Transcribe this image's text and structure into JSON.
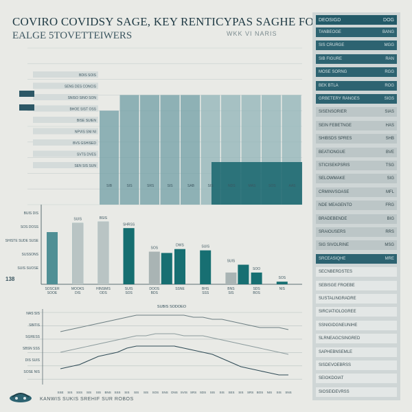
{
  "header": {
    "title_line1": "COVIRO COVIDSY SAGE, KEY RENTICYPAS SAGHE FOD.",
    "title_line2": "EALGE 5TOVETTEIWERS",
    "subtitle_right": "WKK VI NARIS"
  },
  "side_number": "138",
  "footer_text": "KANWIS SUKIS SREHIF SUR ROBOS",
  "colors": {
    "teal_dark": "#176f72",
    "teal_mid": "#4f8f95",
    "grey": "#a9b4b4",
    "navy": "#235a68",
    "line": "#2e4a55"
  },
  "right_panel": {
    "header_left": "DEOSIGD",
    "header_right": "DOG",
    "rows": [
      {
        "label": "TANBEOGE",
        "value": "BANG",
        "style": "dark"
      },
      {
        "label": "SIS CRURGE",
        "value": "MGG",
        "style": "dark"
      },
      {
        "label": "SIB FIGURE",
        "value": "RAN",
        "style": "dark"
      },
      {
        "label": "MOSE SORNG",
        "value": "RGG",
        "style": "dark"
      },
      {
        "label": "BEK BTLA",
        "value": "ROG",
        "style": "dark"
      },
      {
        "label": "GRBETERY RANGES",
        "value": "SIGS",
        "style": "dark"
      },
      {
        "label": "SISENSORIER",
        "value": "SIAS",
        "style": "light"
      },
      {
        "label": "SEIN FEBETNGE",
        "value": "HAS",
        "style": "light"
      },
      {
        "label": "SHIBSDS SPRES",
        "value": "SHB",
        "style": "light"
      },
      {
        "label": "BEATIONGUE",
        "value": "BVE",
        "style": "light"
      },
      {
        "label": "STICISEKPSRIS",
        "value": "TSG",
        "style": "light"
      },
      {
        "label": "SELOWMAKE",
        "value": "SIG",
        "style": "light"
      },
      {
        "label": "CRMINVSOASE",
        "value": "MFL",
        "style": "light"
      },
      {
        "label": "NDE MEAGENTO",
        "value": "FRG",
        "style": "light"
      },
      {
        "label": "BRADEBENDE",
        "value": "BIG",
        "style": "light"
      },
      {
        "label": "SRAIOUSERS",
        "value": "RRS",
        "style": "light"
      },
      {
        "label": "SIG SIVOLRINE",
        "value": "MSG",
        "style": "light"
      },
      {
        "label": "SRCEASIQHE",
        "value": "MRE",
        "style": "dark"
      },
      {
        "label": "SECNBERDSTES",
        "value": "",
        "style": "pale"
      },
      {
        "label": "SEBISGE FROEBE",
        "value": "",
        "style": "pale"
      },
      {
        "label": "SUSTALINGRADRE",
        "value": "",
        "style": "pale"
      },
      {
        "label": "SIRCIATIOLOGREE",
        "value": "",
        "style": "pale"
      },
      {
        "label": "SSNIGIDGNEUNIHE",
        "value": "",
        "style": "pale"
      },
      {
        "label": "SLRNEAGCSINGRED",
        "value": "",
        "style": "pale"
      },
      {
        "label": "SAPHEBNSEMLE",
        "value": "",
        "style": "pale"
      },
      {
        "label": "SISDEVOEBRSS",
        "value": "",
        "style": "pale"
      },
      {
        "label": "SEIOKDOIAT",
        "value": "",
        "style": "pale"
      },
      {
        "label": "SIOSEIDEVRSS",
        "value": "",
        "style": "pale"
      }
    ]
  },
  "chart_data": [
    {
      "type": "bar",
      "title": "",
      "categories": [
        "SIB",
        "SIS",
        "SRS",
        "SIS",
        "SAB",
        "SIS",
        "NDS",
        "MAS",
        "SOS",
        "AAS"
      ],
      "series": [
        {
          "values": [
            12,
            14,
            14,
            14,
            14,
            14,
            14,
            14,
            14,
            14
          ]
        },
        {
          "values": [
            14,
            14,
            14,
            14,
            14,
            14,
            14,
            14,
            14,
            14
          ]
        }
      ],
      "legend_labels": [
        "BDIS SOIS",
        "SENS DES CONCIS",
        "SNISO SINO SON",
        "BHOE SIST OSS",
        "BISE SUIEN",
        "NPVIS SNI NI",
        "BVS GSHISED",
        "SVTS DVES",
        "SEN SIS SUN"
      ],
      "ylim": [
        0,
        20
      ]
    },
    {
      "type": "bar",
      "categories": [
        "SOSCER\nSOOE",
        "MOOKS\nDIS",
        "HINSIMS\nODS",
        "SUIS\nSOS",
        "DOOS\nBDS",
        "SSNE",
        "BHS\nSSS",
        "BNS\nSIS",
        "SDS\nBOS",
        "NIS"
      ],
      "series": [
        {
          "name": "teal",
          "values": [
            40,
            47,
            48,
            43,
            0,
            0,
            0,
            0,
            0,
            0
          ]
        },
        {
          "name": "grey",
          "values": [
            0,
            0,
            0,
            0,
            25,
            0,
            0,
            9,
            0,
            0
          ]
        },
        {
          "name": "dark",
          "values": [
            0,
            0,
            0,
            0,
            24,
            27,
            26,
            15,
            9,
            2
          ]
        }
      ],
      "bar_labels": [
        "",
        "SUIS",
        "BSIS",
        "SHRSS",
        "SOS",
        "DWS",
        "SUIS",
        "SUIS",
        "SOO",
        "SOS"
      ],
      "left_labels": [
        "BUIS DIS",
        "SOS DOSS",
        "SHISTE SUDE SUSE",
        "SUSSONS",
        "SUIS SUOSE"
      ],
      "ylim": [
        0,
        60
      ]
    },
    {
      "type": "line",
      "title": "SUBIS SODOEO",
      "x": [
        "SSE",
        "SIS",
        "SSS",
        "SIS",
        "SIS",
        "BNS",
        "SSS",
        "SIS",
        "SIS",
        "SIS",
        "SOS",
        "SNS",
        "DNS",
        "SVIS",
        "SRS",
        "SDS",
        "SIS",
        "SIS",
        "SES",
        "SIS",
        "SRS",
        "BOS",
        "NIS",
        "SIS",
        "SNS"
      ],
      "series": [
        {
          "name": "upper",
          "values": [
            14,
            15,
            16,
            17,
            18,
            19,
            20,
            21,
            22,
            22,
            22,
            22,
            22,
            22,
            21,
            21,
            20,
            20,
            19,
            18,
            17,
            16,
            16,
            16,
            15
          ]
        },
        {
          "name": "middle",
          "values": [
            4,
            5,
            6,
            7,
            8,
            9,
            10,
            11,
            12,
            12,
            13,
            13,
            13,
            12,
            12,
            12,
            11,
            10,
            9,
            8,
            7,
            6,
            5,
            4,
            3
          ]
        },
        {
          "name": "lower",
          "values": [
            -4,
            -3,
            -2,
            0,
            2,
            3,
            4,
            6,
            7,
            7,
            7,
            7,
            7,
            6,
            5,
            4,
            3,
            1,
            -1,
            -3,
            -4,
            -5,
            -6,
            -7,
            -7
          ]
        }
      ],
      "left_labels": [
        "NAS SIS",
        "SBITIS",
        "SGRESS",
        "SBSN SSS",
        "DIS SUIS",
        "SOSE NIS"
      ],
      "ylim": [
        -10,
        25
      ]
    }
  ]
}
